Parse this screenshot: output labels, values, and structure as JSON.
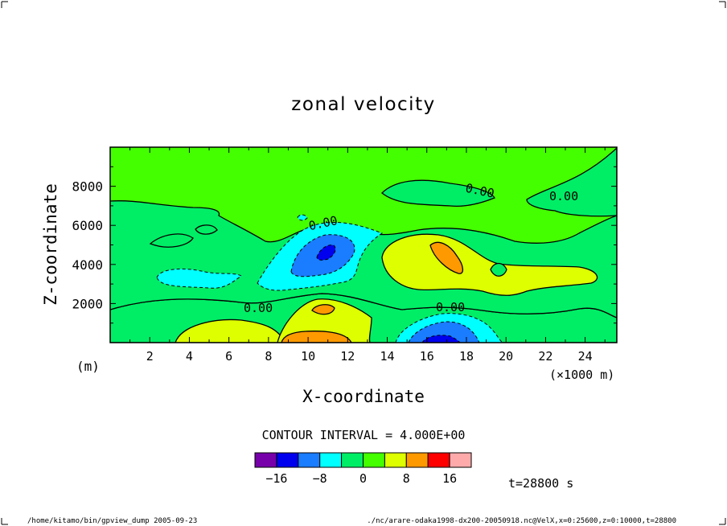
{
  "chart_data": {
    "type": "contour",
    "title": "zonal velocity",
    "xlabel": "X-coordinate",
    "ylabel": "Z-coordinate",
    "x_unit_label": "(×1000 m)",
    "y_unit_label": "(m)",
    "xlim": [
      0,
      25.6
    ],
    "ylim": [
      0,
      10000
    ],
    "x_ticks": [
      "2",
      "4",
      "6",
      "8",
      "10",
      "12",
      "14",
      "16",
      "18",
      "20",
      "22",
      "24"
    ],
    "x_tick_values": [
      2,
      4,
      6,
      8,
      10,
      12,
      14,
      16,
      18,
      20,
      22,
      24
    ],
    "y_ticks": [
      "2000",
      "4000",
      "6000",
      "8000"
    ],
    "y_tick_values": [
      2000,
      4000,
      6000,
      8000
    ],
    "contour_interval_text": "CONTOUR INTERVAL = 4.000E+00",
    "contour_labels": [
      "0.00",
      "0.00",
      "0.00",
      "0.00",
      "0.00"
    ],
    "colorbar": {
      "levels": [
        -20,
        -16,
        -12,
        -8,
        -4,
        0,
        4,
        8,
        12,
        16,
        20
      ],
      "colors": [
        "#7700aa",
        "#0000ee",
        "#1a7cff",
        "#00ffff",
        "#00ee66",
        "#44ff00",
        "#ddff00",
        "#ff9900",
        "#ff0000",
        "#ffaaaa"
      ],
      "labels": [
        "−16",
        "−8",
        "0",
        "8",
        "16"
      ],
      "label_values": [
        -16,
        -8,
        0,
        8,
        16
      ]
    },
    "time_label": "t=28800 s",
    "features": [
      {
        "kind": "negative core",
        "x_km": 11,
        "z_m": 4600,
        "value": -16
      },
      {
        "kind": "negative core",
        "x_km": 16.8,
        "z_m": 200,
        "value": -16
      },
      {
        "kind": "positive core",
        "x_km": 16.8,
        "z_m": 4300,
        "value": 8
      },
      {
        "kind": "positive core",
        "x_km": 10.5,
        "z_m": 200,
        "value": 8
      },
      {
        "kind": "positive core",
        "x_km": 10.8,
        "z_m": 1700,
        "value": 8
      }
    ]
  },
  "footer": {
    "left": "/home/kitamo/bin/gpview_dump  2005-09-23",
    "right": "./nc/arare-odaka1998-dx200-20050918.nc@VelX,x=0:25600,z=0:10000,t=28800"
  }
}
